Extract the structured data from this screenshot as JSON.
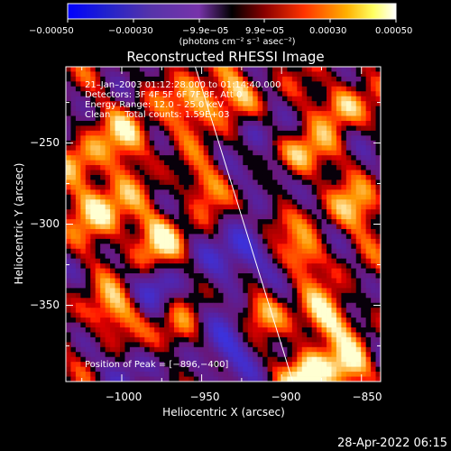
{
  "chart_data": {
    "type": "heatmap",
    "title": "Reconstructed RHESSI Image",
    "xlabel": "Heliocentric X (arcsec)",
    "ylabel": "Heliocentric Y (arcsec)",
    "xlim": [
      -1035,
      -838
    ],
    "ylim": [
      -397,
      -203
    ],
    "xticks": [
      -1000,
      -950,
      -900,
      -850
    ],
    "xtick_labels": [
      "−1000",
      "−950",
      "−900",
      "−850"
    ],
    "yticks": [
      -250,
      -300,
      -350
    ],
    "ytick_labels": [
      "−250",
      "−300",
      "−350"
    ],
    "colorbar": {
      "range": [
        -0.0005,
        0.0005
      ],
      "tick_labels": [
        "−0.00050",
        "−0.00030",
        "−9.9e−05",
        "9.9e−05",
        "0.00030",
        "0.00050"
      ],
      "unit_label": "(photons cm⁻² s⁻¹ asec⁻²)"
    },
    "annotations": [
      "21–Jan–2003 01:12:28.000 to 01:14:40.000",
      "Detectors: 3F 4F 5F 6F 7F 8F, Att 0",
      "Energy Range: 12.0 – 25.0 keV",
      "Clean     Total counts: 1.59E+03"
    ],
    "peak_label": "Position of Peak = [−896,−400]",
    "peak_position": [
      -896,
      -400
    ],
    "limb_line": [
      [
        -954,
        -203
      ],
      [
        -893,
        -397
      ]
    ],
    "grid": false,
    "grid_cells": [
      64,
      64
    ]
  },
  "footer": {
    "timestamp": "28-Apr-2022 06:15"
  }
}
